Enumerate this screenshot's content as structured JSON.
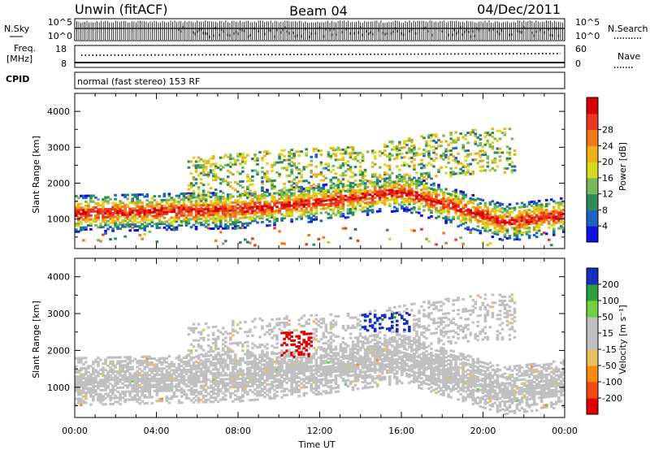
{
  "header": {
    "station": "Unwin (fitACF)",
    "beam": "Beam 04",
    "date": "04/Dec/2011"
  },
  "status": {
    "nsky_label": "N.Sky",
    "nsky_ticks": [
      "10^5",
      "10^0"
    ],
    "nsearch_label": "N.Search",
    "nsearch_ticks": [
      "10^5",
      "10^0"
    ],
    "freq_label": "Freq.",
    "freq_unit": "[MHz]",
    "freq_ticks": [
      "18",
      "8"
    ],
    "nave_label": "Nave",
    "nave_ticks": [
      "60",
      "0"
    ],
    "cpid_label": "CPID",
    "cpid_text": "normal (fast stereo) 153 RF"
  },
  "colors": {
    "power_scale": [
      "#1010e0",
      "#1e64be",
      "#2e8b57",
      "#76b95a",
      "#d8d820",
      "#f0b018",
      "#f07818",
      "#e83820",
      "#d80000"
    ],
    "velocity_scale": [
      "#e00000",
      "#f04a14",
      "#f88c10",
      "#e8c060",
      "#c0c0c0",
      "#c0c0c0",
      "#6fd040",
      "#2ea040",
      "#1830c0"
    ],
    "ground_scatter": "#c0c0c0"
  },
  "chart_data": [
    {
      "type": "heatmap",
      "name": "power",
      "xlabel": "",
      "ylabel": "Slant Range [km]",
      "xlim": [
        0,
        24
      ],
      "ylim": [
        180,
        4500
      ],
      "x_ticks": [
        "00:00",
        "04:00",
        "08:00",
        "12:00",
        "16:00",
        "20:00",
        "00:00"
      ],
      "y_ticks": [
        1000,
        2000,
        3000,
        4000
      ],
      "colorbar": {
        "label": "Power [dB]",
        "ticks": [
          4,
          8,
          12,
          16,
          20,
          24,
          28
        ],
        "range": [
          0,
          30
        ]
      },
      "features": [
        {
          "feature": "main echo band",
          "range_km_center_by_hour": [
            [
              0,
              1150
            ],
            [
              4,
              1200
            ],
            [
              8,
              1250
            ],
            [
              12,
              1450
            ],
            [
              16,
              1750
            ],
            [
              19,
              1250
            ],
            [
              21,
              900
            ],
            [
              24,
              1100
            ]
          ],
          "power_db": 28
        },
        {
          "feature": "upper echo band",
          "range_km_center_by_hour": [
            [
              6,
              2000
            ],
            [
              10,
              2200
            ],
            [
              14,
              2300
            ],
            [
              17,
              2600
            ],
            [
              20,
              2800
            ]
          ],
          "power_db": 12
        }
      ]
    },
    {
      "type": "heatmap",
      "name": "velocity",
      "xlabel": "Time UT",
      "ylabel": "Slant Range [km]",
      "xlim": [
        0,
        24
      ],
      "ylim": [
        180,
        4500
      ],
      "x_ticks": [
        "00:00",
        "04:00",
        "08:00",
        "12:00",
        "16:00",
        "20:00",
        "00:00"
      ],
      "y_ticks": [
        1000,
        2000,
        3000,
        4000
      ],
      "colorbar": {
        "label": "Velocity [m s⁻¹]",
        "ticks": [
          200,
          100,
          50,
          15,
          -15,
          -50,
          -100,
          -200
        ],
        "range": [
          -250,
          250
        ]
      },
      "features": [
        {
          "feature": "ground scatter",
          "hours": [
            0,
            24
          ],
          "range_km": [
            500,
            1500
          ],
          "velocity": 0
        },
        {
          "feature": "negative velocities",
          "hours": [
            10,
            11.5
          ],
          "range_km": [
            1800,
            2500
          ],
          "velocity": -200
        },
        {
          "feature": "positive velocities",
          "hours": [
            14,
            16.5
          ],
          "range_km": [
            2500,
            3000
          ],
          "velocity": 200
        },
        {
          "feature": "low positive velocities",
          "hours": [
            15.5,
            18
          ],
          "range_km": [
            900,
            2400
          ],
          "velocity": 40
        }
      ]
    }
  ]
}
